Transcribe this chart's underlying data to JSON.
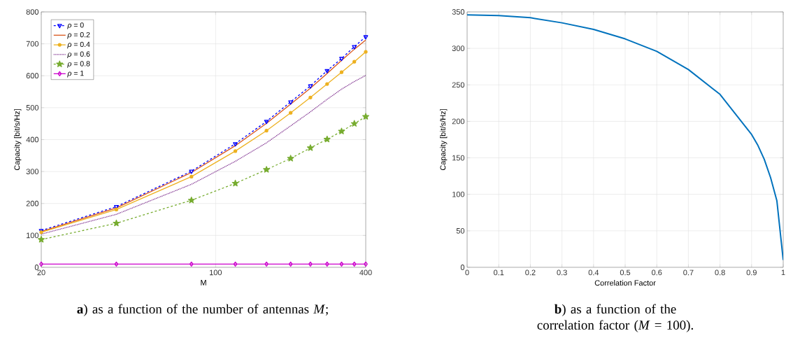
{
  "chart_data": [
    {
      "type": "line",
      "xlabel": "M",
      "ylabel": "Capacity [bit/s/Hz]",
      "log": "x",
      "grid": true,
      "legend": "top left",
      "xlim": [
        20,
        400
      ],
      "ylim": [
        0,
        800
      ],
      "xticks": [
        20,
        100,
        400
      ],
      "yticks": [
        0,
        100,
        200,
        300,
        400,
        500,
        600,
        700,
        800
      ],
      "x": [
        20,
        40,
        80,
        120,
        160,
        200,
        240,
        280,
        320,
        360,
        400
      ],
      "series": [
        {
          "name": "*ρ* = 0",
          "color": "#0000ff",
          "marker": "triangle",
          "line_style": "dashed",
          "values": [
            115,
            190,
            301,
            387,
            457,
            518,
            568,
            616,
            654,
            691,
            722
          ]
        },
        {
          "name": "*ρ* = 0.2",
          "color": "#d95319",
          "marker": "none",
          "line_style": "solid",
          "values": [
            112,
            186,
            297,
            381,
            451,
            511,
            561,
            607,
            648,
            683,
            712
          ]
        },
        {
          "name": "*ρ* = 0.4",
          "color": "#edb120",
          "marker": "circle",
          "line_style": "solid",
          "values": [
            110,
            181,
            284,
            364,
            428,
            484,
            532,
            574,
            611,
            644,
            675
          ]
        },
        {
          "name": "*ρ* = 0.6",
          "color": "#7e2f8e",
          "marker": "none",
          "line_style": "dotted",
          "values": [
            104,
            166,
            260,
            332,
            390,
            443,
            487,
            526,
            558,
            582,
            601
          ]
        },
        {
          "name": "*ρ* = 0.8",
          "color": "#77ac30",
          "marker": "star",
          "line_style": "dashed",
          "values": [
            87,
            138,
            210,
            263,
            306,
            341,
            374,
            401,
            426,
            450,
            472
          ]
        },
        {
          "name": "*ρ* = 1",
          "color": "#cc00cc",
          "marker": "diamond",
          "line_style": "solid",
          "values": [
            10,
            10,
            10,
            10,
            10,
            10,
            10,
            10,
            10,
            10,
            10
          ]
        }
      ],
      "annotations": [
        "**a**) as a function of the number of antennas *M*;"
      ]
    },
    {
      "type": "line",
      "xlabel": "Correlation Factor",
      "ylabel": "Capacity [bit/s/Hz]",
      "grid": true,
      "xlim": [
        0,
        1
      ],
      "ylim": [
        0,
        350
      ],
      "xticks": [
        0,
        0.1,
        0.2,
        0.3,
        0.4,
        0.5,
        0.6,
        0.7,
        0.8,
        0.9,
        1
      ],
      "yticks": [
        0,
        50,
        100,
        150,
        200,
        250,
        300,
        350
      ],
      "x": [
        0,
        0.1,
        0.2,
        0.3,
        0.4,
        0.5,
        0.6,
        0.7,
        0.8,
        0.9,
        0.92,
        0.94,
        0.96,
        0.98,
        1
      ],
      "series": [
        {
          "color": "#0072bd",
          "values": [
            346,
            345,
            342,
            335,
            326,
            313,
            296,
            271,
            237,
            182,
            167,
            148,
            123,
            91,
            10
          ]
        }
      ],
      "annotations": [
        "**b**) as a function of the correlation factor (*M* = 100)."
      ]
    }
  ]
}
